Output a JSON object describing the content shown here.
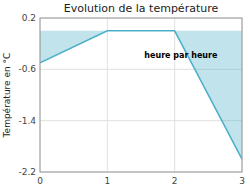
{
  "chart_data": {
    "type": "area",
    "title": "Evolution de la température",
    "y_label": "Température en °C",
    "annotations": [
      {
        "text": "heure par heure",
        "x": 1.55,
        "y": -0.42
      }
    ],
    "x": [
      0,
      1,
      2,
      3
    ],
    "values": [
      -0.5,
      0.0,
      0.0,
      -2.0
    ],
    "color": "#4ab0c8",
    "xlim": [
      0,
      3
    ],
    "ylim": [
      -2.2,
      0.2
    ],
    "xticks": [
      0,
      1,
      2,
      3
    ],
    "yticks": [
      0.2,
      -0.6,
      -1.4,
      -2.2
    ],
    "grid": true
  }
}
